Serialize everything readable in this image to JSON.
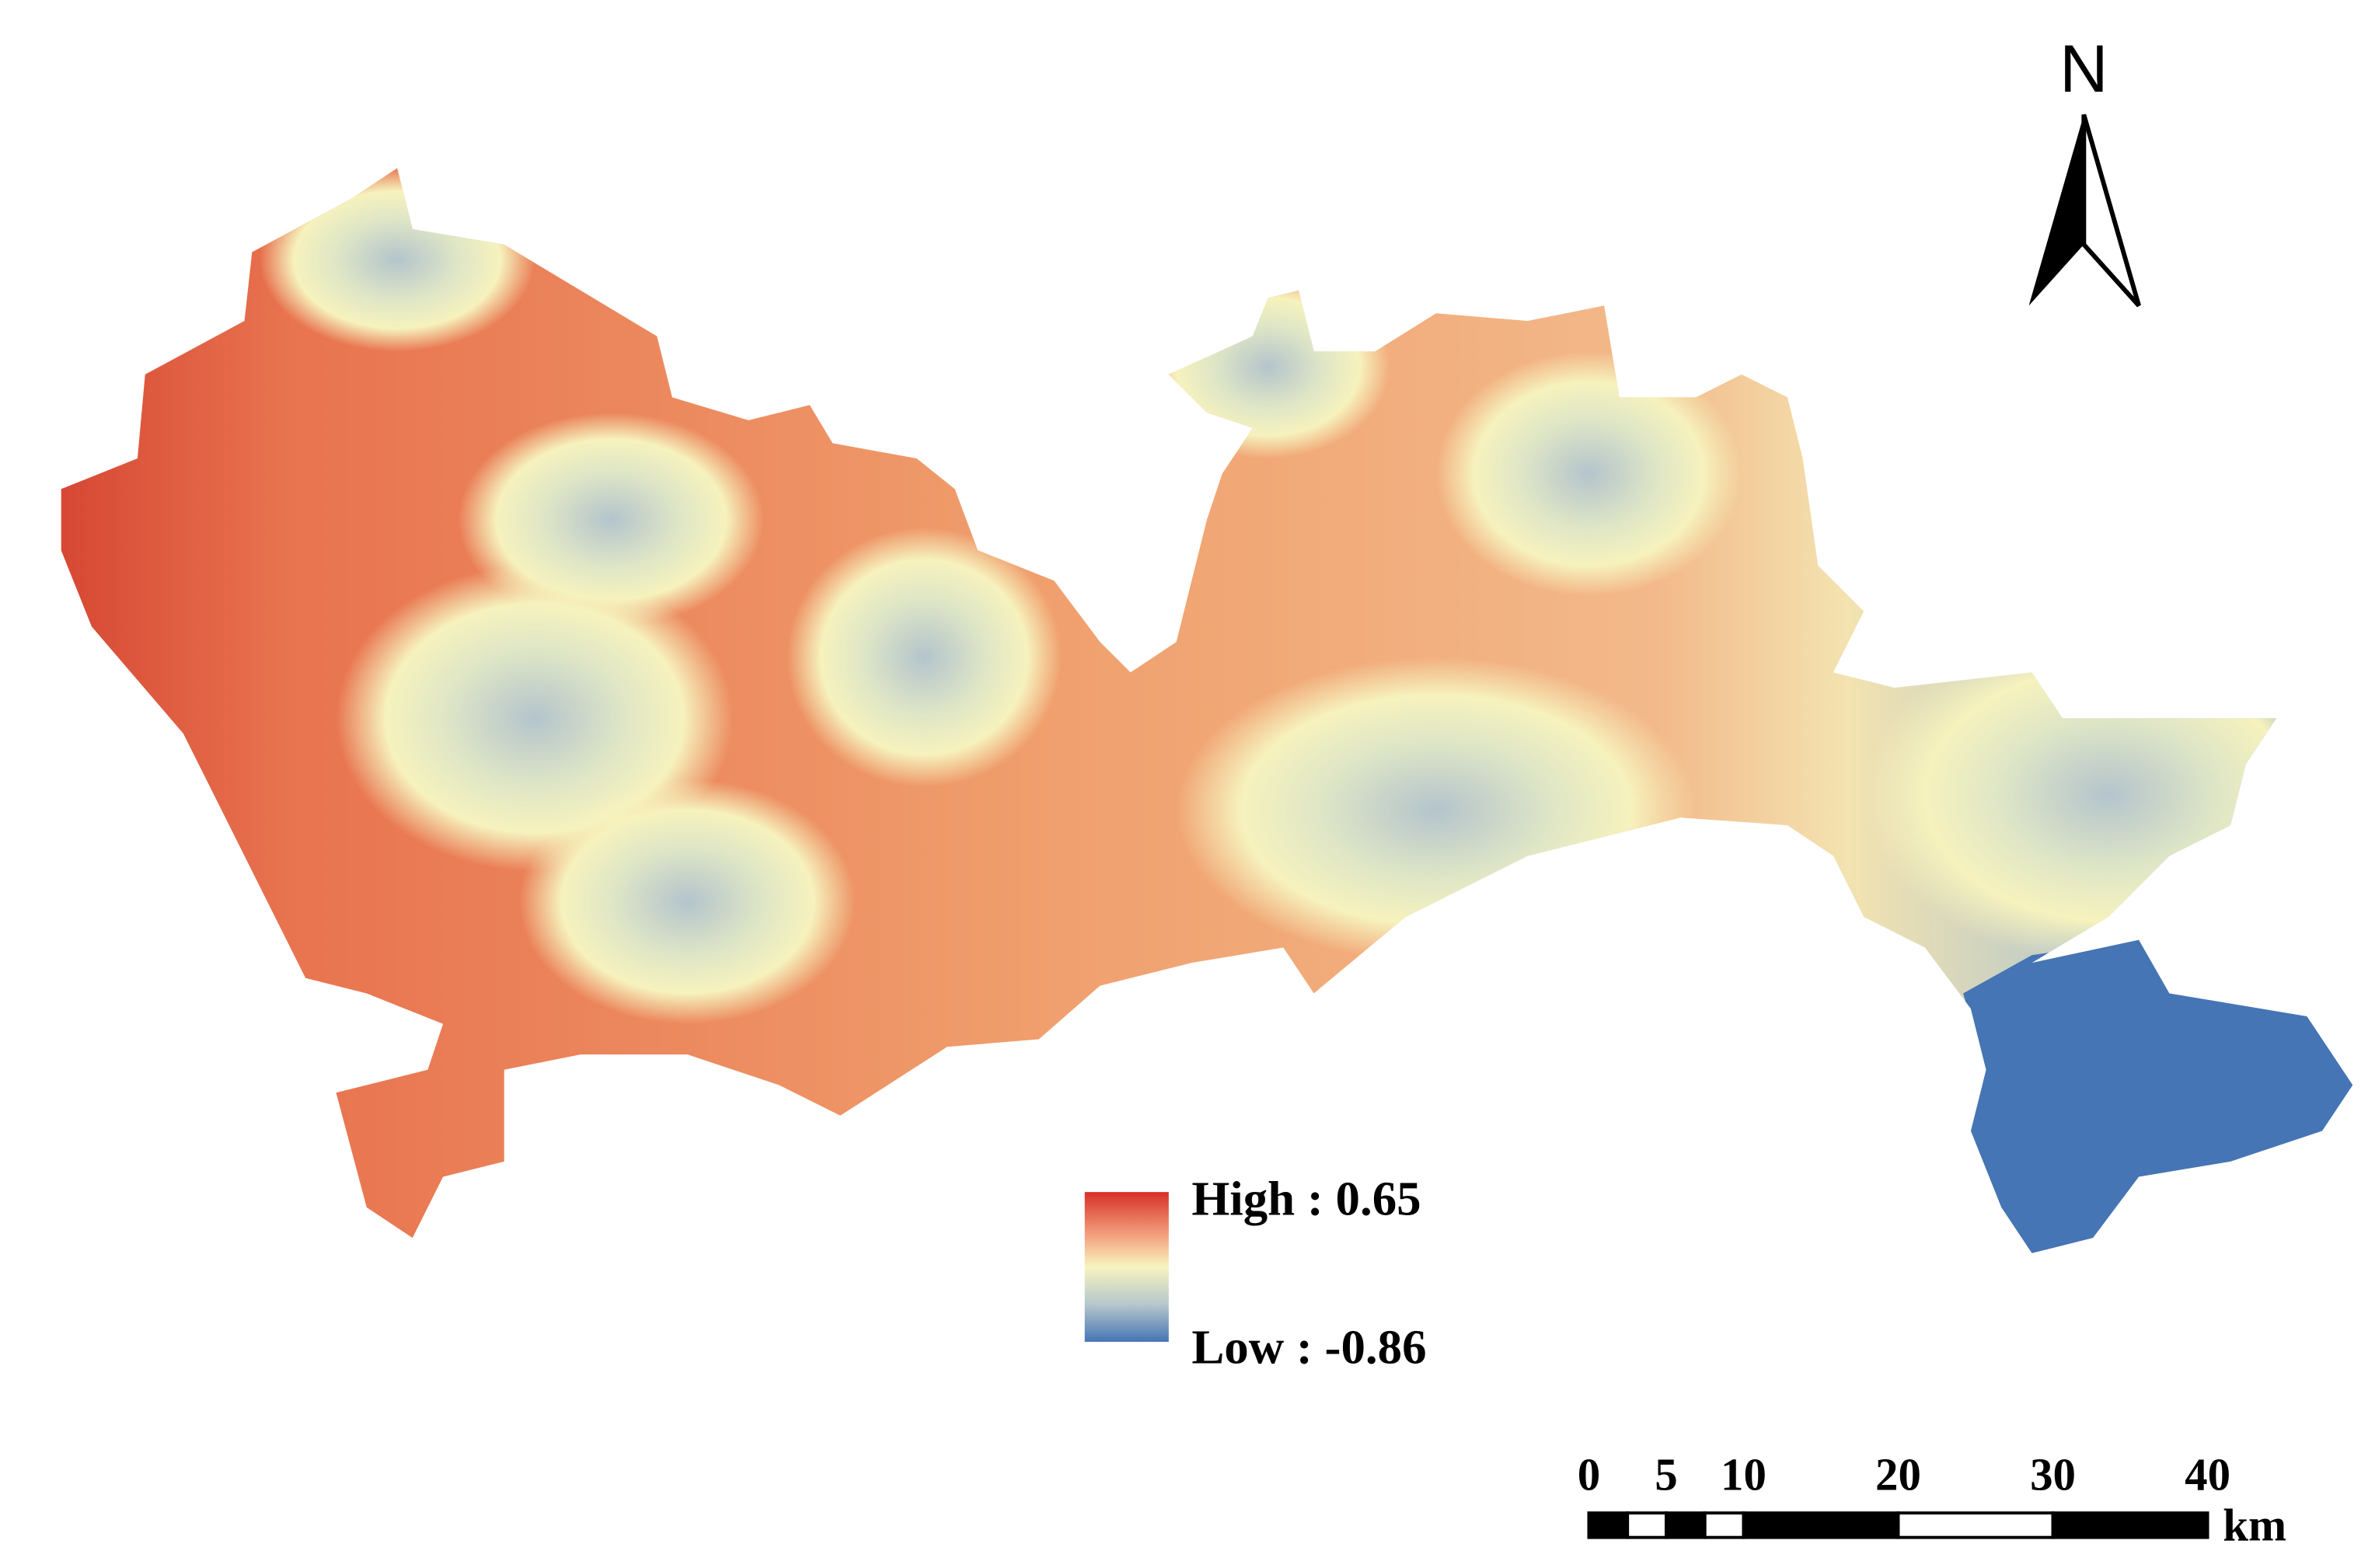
{
  "north_arrow": {
    "label": "N"
  },
  "legend": {
    "high": "High : 0.65",
    "low": "Low : -0.86"
  },
  "scale_bar": {
    "ticks": [
      0,
      5,
      10,
      20,
      30,
      40
    ],
    "unit": "km"
  }
}
